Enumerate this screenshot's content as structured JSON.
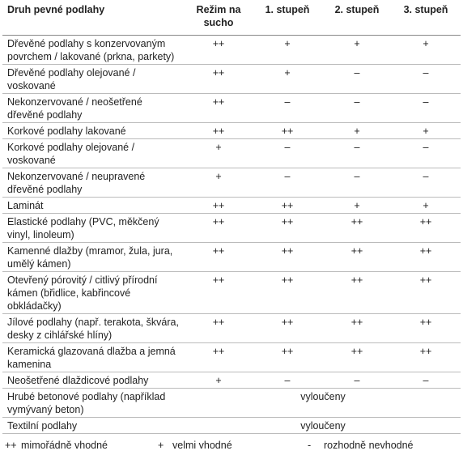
{
  "table": {
    "header": [
      "Druh pevné podlahy",
      "Režim na sucho",
      "1. stupeň",
      "2. stupeň",
      "3. stupeň"
    ],
    "rows": [
      {
        "label": "Dřevěné podlahy s konzervovaným povrchem / lakované (prkna, parkety)",
        "cells": [
          "++",
          "+",
          "+",
          "+"
        ]
      },
      {
        "label": "Dřevěné podlahy olejované / voskované",
        "cells": [
          "++",
          "+",
          "–",
          "–"
        ]
      },
      {
        "label": "Nekonzervované / neošetřené dřevěné podlahy",
        "cells": [
          "++",
          "–",
          "–",
          "–"
        ]
      },
      {
        "label": "Korkové podlahy lakované",
        "cells": [
          "++",
          "++",
          "+",
          "+"
        ]
      },
      {
        "label": "Korkové podlahy olejované / voskované",
        "cells": [
          "+",
          "–",
          "–",
          "–"
        ]
      },
      {
        "label": "Nekonzervované / neupravené dřevěné podlahy",
        "cells": [
          "+",
          "–",
          "–",
          "–"
        ]
      },
      {
        "label": "Laminát",
        "cells": [
          "++",
          "++",
          "+",
          "+"
        ]
      },
      {
        "label": "Elastické podlahy (PVC, měkčený vinyl, linoleum)",
        "cells": [
          "++",
          "++",
          "++",
          "++"
        ]
      },
      {
        "label": "Kamenné dlažby (mramor, žula, jura, umělý kámen)",
        "cells": [
          "++",
          "++",
          "++",
          "++"
        ]
      },
      {
        "label": "Otevřený pórovitý / citlivý přírodní kámen (břidlice, kabřincové obkládačky)",
        "cells": [
          "++",
          "++",
          "++",
          "++"
        ]
      },
      {
        "label": "Jílové podlahy (např. terakota, škvára, desky z cihlářské hlíny)",
        "cells": [
          "++",
          "++",
          "++",
          "++"
        ]
      },
      {
        "label": "Keramická glazovaná dlažba a jemná kamenina",
        "cells": [
          "++",
          "++",
          "++",
          "++"
        ]
      },
      {
        "label": "Neošetřené dlaždicové podlahy",
        "cells": [
          "+",
          "–",
          "–",
          "–"
        ]
      },
      {
        "label": "Hrubé betonové podlahy (například vymývaný beton)",
        "merged": "vyloučeny"
      },
      {
        "label": "Textilní podlahy",
        "merged": "vyloučeny"
      }
    ]
  },
  "legend": [
    {
      "symbol": "++",
      "text": "mimořádně vhodné"
    },
    {
      "symbol": "+",
      "text": "velmi vhodné"
    },
    {
      "symbol": "-",
      "text": "rozhodně nevhodné"
    }
  ]
}
